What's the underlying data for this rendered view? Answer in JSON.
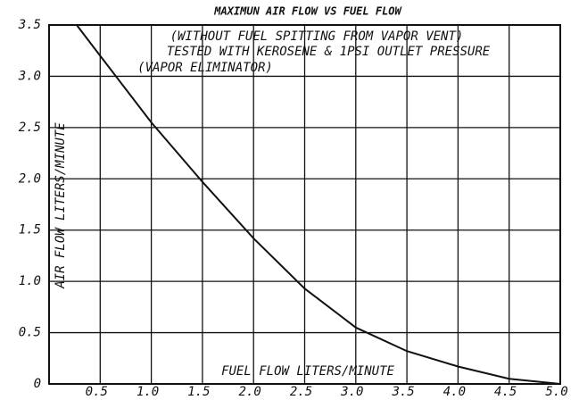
{
  "chart_data": {
    "type": "line",
    "title": "MAXIMUN AIR FLOW VS FUEL FLOW",
    "annotations": [
      "(WITHOUT FUEL SPITTING FROM VAPOR VENT)",
      "TESTED WITH KEROSENE & 1PSI OUTLET PRESSURE",
      "(VAPOR ELIMINATOR)"
    ],
    "x_label": "FUEL FLOW LITERS/MINUTE",
    "y_label": "AIR FLOW LITERS/MINUTE",
    "x": [
      0.27,
      0.5,
      1.0,
      1.5,
      2.0,
      2.5,
      3.0,
      3.5,
      4.0,
      4.5,
      5.0
    ],
    "values": [
      3.5,
      3.2,
      2.55,
      1.97,
      1.42,
      0.93,
      0.55,
      0.32,
      0.17,
      0.05,
      0
    ],
    "color": "#111111",
    "xlim": [
      0,
      5
    ],
    "ylim": [
      0,
      3.5
    ],
    "xticks": [
      0.5,
      {
        "value": 1,
        "label": "1.0"
      },
      1.5,
      {
        "value": 2,
        "label": "2.0"
      },
      2.5,
      {
        "value": 3,
        "label": "3.0"
      },
      3.5,
      {
        "value": 4,
        "label": "4.0"
      },
      4.5,
      {
        "value": 5,
        "label": "5.0"
      }
    ],
    "yticks": [
      0,
      0.5,
      {
        "value": 1,
        "label": "1.0"
      },
      1.5,
      {
        "value": 2,
        "label": "2.0"
      },
      2.5,
      {
        "value": 3,
        "label": "3.0"
      },
      3.5
    ],
    "grid": true
  }
}
